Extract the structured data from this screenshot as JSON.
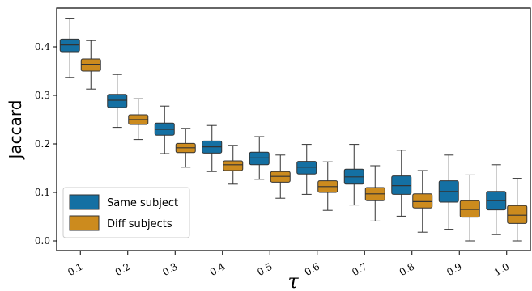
{
  "chart_data": {
    "type": "box",
    "xlabel": "τ",
    "ylabel": "Jaccard",
    "categories": [
      "0.1",
      "0.2",
      "0.3",
      "0.4",
      "0.5",
      "0.6",
      "0.7",
      "0.8",
      "0.9",
      "1.0"
    ],
    "ylim": [
      -0.02,
      0.48
    ],
    "yticks": [
      "0.0",
      "0.1",
      "0.2",
      "0.3",
      "0.4"
    ],
    "legend_position": "lower-left",
    "series": [
      {
        "name": "Same subject",
        "color": "#1470a3",
        "boxes": [
          {
            "whislo": 0.337,
            "q1": 0.39,
            "med": 0.404,
            "q3": 0.416,
            "whishi": 0.459
          },
          {
            "whislo": 0.234,
            "q1": 0.275,
            "med": 0.29,
            "q3": 0.302,
            "whishi": 0.343
          },
          {
            "whislo": 0.18,
            "q1": 0.218,
            "med": 0.23,
            "q3": 0.243,
            "whishi": 0.278
          },
          {
            "whislo": 0.143,
            "q1": 0.181,
            "med": 0.194,
            "q3": 0.206,
            "whishi": 0.238
          },
          {
            "whislo": 0.127,
            "q1": 0.157,
            "med": 0.171,
            "q3": 0.183,
            "whishi": 0.215
          },
          {
            "whislo": 0.096,
            "q1": 0.138,
            "med": 0.152,
            "q3": 0.164,
            "whishi": 0.199
          },
          {
            "whislo": 0.074,
            "q1": 0.117,
            "med": 0.132,
            "q3": 0.148,
            "whishi": 0.199
          },
          {
            "whislo": 0.051,
            "q1": 0.096,
            "med": 0.114,
            "q3": 0.134,
            "whishi": 0.187
          },
          {
            "whislo": 0.024,
            "q1": 0.08,
            "med": 0.102,
            "q3": 0.124,
            "whishi": 0.177
          },
          {
            "whislo": 0.013,
            "q1": 0.064,
            "med": 0.083,
            "q3": 0.102,
            "whishi": 0.157
          }
        ]
      },
      {
        "name": "Diff subjects",
        "color": "#cc8b1e",
        "boxes": [
          {
            "whislo": 0.313,
            "q1": 0.35,
            "med": 0.364,
            "q3": 0.375,
            "whishi": 0.413
          },
          {
            "whislo": 0.209,
            "q1": 0.24,
            "med": 0.25,
            "q3": 0.26,
            "whishi": 0.293
          },
          {
            "whislo": 0.152,
            "q1": 0.182,
            "med": 0.192,
            "q3": 0.201,
            "whishi": 0.232
          },
          {
            "whislo": 0.117,
            "q1": 0.145,
            "med": 0.157,
            "q3": 0.165,
            "whishi": 0.197
          },
          {
            "whislo": 0.088,
            "q1": 0.121,
            "med": 0.133,
            "q3": 0.143,
            "whishi": 0.177
          },
          {
            "whislo": 0.063,
            "q1": 0.1,
            "med": 0.112,
            "q3": 0.124,
            "whishi": 0.163
          },
          {
            "whislo": 0.041,
            "q1": 0.083,
            "med": 0.097,
            "q3": 0.11,
            "whishi": 0.155
          },
          {
            "whislo": 0.018,
            "q1": 0.068,
            "med": 0.081,
            "q3": 0.097,
            "whishi": 0.145
          },
          {
            "whislo": 0.0,
            "q1": 0.049,
            "med": 0.065,
            "q3": 0.083,
            "whishi": 0.136
          },
          {
            "whislo": 0.0,
            "q1": 0.036,
            "med": 0.053,
            "q3": 0.073,
            "whishi": 0.129
          }
        ]
      }
    ]
  }
}
